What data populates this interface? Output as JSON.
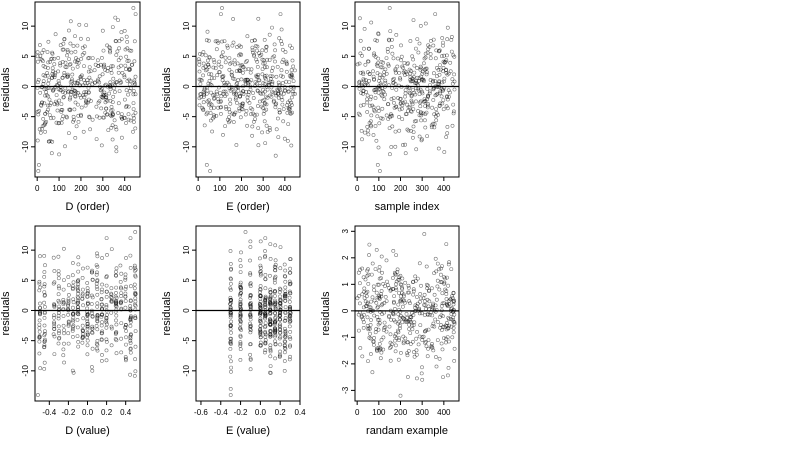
{
  "chart_data": [
    {
      "type": "scatter",
      "xlabel": "D (order)",
      "ylabel": "residuals",
      "xlim": [
        -10,
        470
      ],
      "ylim": [
        -15,
        14
      ],
      "xticks": [
        0,
        100,
        200,
        300,
        400
      ],
      "yticks": [
        -10,
        -5,
        0,
        5,
        10
      ],
      "hline": 0,
      "n_points": 450,
      "x_range": [
        1,
        450
      ],
      "y_sd": 4.4,
      "extremes": [
        [
          5,
          -14
        ],
        [
          8,
          -13
        ],
        [
          440,
          13
        ],
        [
          450,
          12
        ],
        [
          370,
          11
        ]
      ]
    },
    {
      "type": "scatter",
      "xlabel": "E (order)",
      "ylabel": "residuals",
      "xlim": [
        -10,
        470
      ],
      "ylim": [
        -15,
        14
      ],
      "xticks": [
        0,
        100,
        200,
        300,
        400
      ],
      "yticks": [
        -10,
        -5,
        0,
        5,
        10
      ],
      "hline": 0,
      "n_points": 450,
      "x_range": [
        1,
        450
      ],
      "y_sd": 4.4,
      "extremes": [
        [
          55,
          -14
        ],
        [
          40,
          -13
        ],
        [
          105,
          12
        ],
        [
          110,
          13
        ],
        [
          380,
          12
        ]
      ]
    },
    {
      "type": "scatter",
      "xlabel": "sample index",
      "ylabel": "residuals",
      "xlim": [
        -10,
        470
      ],
      "ylim": [
        -15,
        14
      ],
      "xticks": [
        0,
        100,
        200,
        300,
        400
      ],
      "yticks": [
        -10,
        -5,
        0,
        5,
        10
      ],
      "hline": 0,
      "n_points": 450,
      "x_range": [
        1,
        450
      ],
      "y_sd": 4.4,
      "extremes": [
        [
          105,
          -14
        ],
        [
          95,
          -13
        ],
        [
          150,
          13
        ],
        [
          360,
          12
        ],
        [
          260,
          11
        ]
      ]
    },
    {
      "type": "scatter",
      "xlabel": "D (value)",
      "ylabel": "residuals",
      "xlim": [
        -0.55,
        0.55
      ],
      "ylim": [
        -15,
        14
      ],
      "xticks": [
        -0.4,
        -0.2,
        0.0,
        0.2,
        0.4
      ],
      "xtick_labels": [
        "-0.4",
        "-0.2",
        "0.0",
        "0.2",
        "0.4"
      ],
      "yticks": [
        -10,
        -5,
        0,
        5,
        10
      ],
      "hline": 0,
      "n_points": 450,
      "x_range": [
        -0.52,
        0.52
      ],
      "x_columns": [
        -0.5,
        -0.45,
        -0.35,
        -0.3,
        -0.25,
        -0.2,
        -0.15,
        -0.1,
        -0.05,
        0.0,
        0.05,
        0.1,
        0.15,
        0.2,
        0.25,
        0.3,
        0.35,
        0.4,
        0.45,
        0.5
      ],
      "y_sd": 4.4,
      "extremes": [
        [
          -0.52,
          -14
        ],
        [
          0.5,
          13
        ],
        [
          0.45,
          12
        ],
        [
          0.2,
          12
        ],
        [
          0.05,
          -10
        ]
      ]
    },
    {
      "type": "scatter",
      "xlabel": "E (value)",
      "ylabel": "residuals",
      "xlim": [
        -0.65,
        0.4
      ],
      "ylim": [
        -15,
        14
      ],
      "xticks": [
        -0.6,
        -0.4,
        -0.2,
        0.0,
        0.2,
        0.4
      ],
      "xtick_labels": [
        "-0.6",
        "-0.4",
        "-0.2",
        "0.0",
        "0.2",
        "0.4"
      ],
      "yticks": [
        -10,
        -5,
        0,
        5,
        10
      ],
      "hline": 0,
      "n_points": 450,
      "x_range": [
        -0.62,
        0.36
      ],
      "x_columns": [
        -0.3,
        -0.2,
        -0.1,
        0.0,
        0.05,
        0.1,
        0.15,
        0.2,
        0.25,
        0.3
      ],
      "y_sd": 4.4,
      "extremes": [
        [
          -0.3,
          -14
        ],
        [
          -0.3,
          -13
        ],
        [
          -0.15,
          13
        ],
        [
          0.05,
          12
        ],
        [
          0.1,
          11
        ]
      ]
    },
    {
      "type": "scatter",
      "xlabel": "randam example",
      "ylabel": "residuals",
      "xlim": [
        -10,
        470
      ],
      "ylim": [
        -3.4,
        3.2
      ],
      "xticks": [
        0,
        100,
        200,
        300,
        400
      ],
      "yticks": [
        -3,
        -2,
        -1,
        0,
        1,
        2,
        3
      ],
      "hline": 0,
      "n_points": 450,
      "x_range": [
        1,
        450
      ],
      "y_sd": 1.0,
      "extremes": [
        [
          310,
          2.9
        ],
        [
          200,
          -3.2
        ],
        [
          90,
          2.3
        ],
        [
          300,
          -2.6
        ]
      ]
    }
  ]
}
